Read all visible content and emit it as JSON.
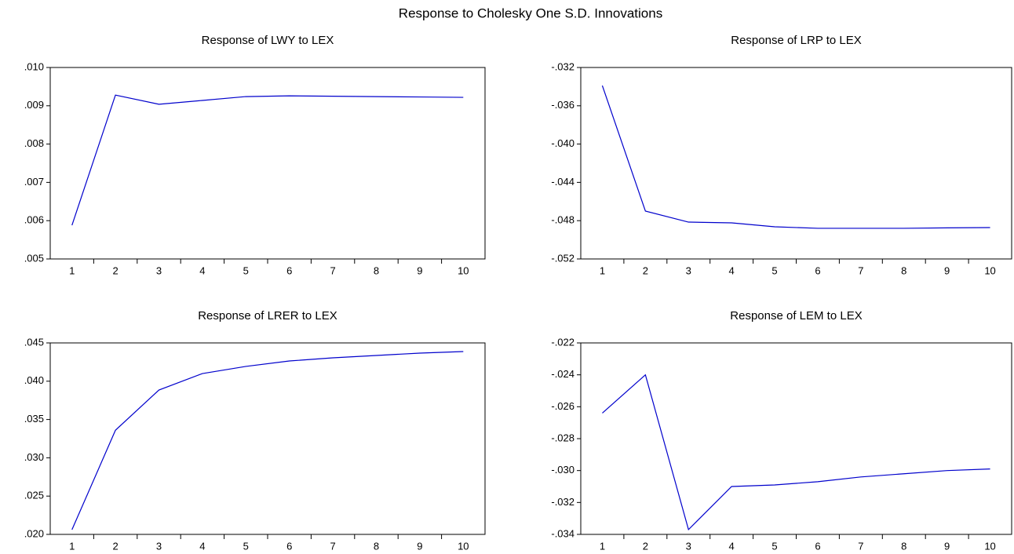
{
  "title": "Response to Cholesky One S.D. Innovations",
  "chart_data": [
    {
      "type": "line",
      "title": "Response of LWY to LEX",
      "categories": [
        "1",
        "2",
        "3",
        "4",
        "5",
        "6",
        "7",
        "8",
        "9",
        "10"
      ],
      "values": [
        0.00588,
        0.00928,
        0.00904,
        0.00914,
        0.00924,
        0.00926,
        0.00925,
        0.00924,
        0.00923,
        0.00922
      ],
      "color": "#0000cc",
      "ylim": [
        0.005,
        0.01
      ],
      "yticks": [
        {
          "value": 0.005,
          "label": ".005"
        },
        {
          "value": 0.006,
          "label": ".006"
        },
        {
          "value": 0.007,
          "label": ".007"
        },
        {
          "value": 0.008,
          "label": ".008"
        },
        {
          "value": 0.009,
          "label": ".009"
        },
        {
          "value": 0.01,
          "label": ".010"
        }
      ],
      "grid": false
    },
    {
      "type": "line",
      "title": "Response of LRP to LEX",
      "categories": [
        "1",
        "2",
        "3",
        "4",
        "5",
        "6",
        "7",
        "8",
        "9",
        "10"
      ],
      "values": [
        -0.03389,
        -0.047,
        -0.04815,
        -0.04823,
        -0.04864,
        -0.0488,
        -0.0488,
        -0.0488,
        -0.04875,
        -0.04872
      ],
      "color": "#0000cc",
      "ylim": [
        -0.052,
        -0.032
      ],
      "yticks": [
        {
          "value": -0.052,
          "label": "-.052"
        },
        {
          "value": -0.048,
          "label": "-.048"
        },
        {
          "value": -0.044,
          "label": "-.044"
        },
        {
          "value": -0.04,
          "label": "-.040"
        },
        {
          "value": -0.036,
          "label": "-.036"
        },
        {
          "value": -0.032,
          "label": "-.032"
        }
      ],
      "grid": false
    },
    {
      "type": "line",
      "title": "Response of LRER to LEX",
      "categories": [
        "1",
        "2",
        "3",
        "4",
        "5",
        "6",
        "7",
        "8",
        "9",
        "10"
      ],
      "values": [
        0.02061,
        0.0336,
        0.03885,
        0.041,
        0.04193,
        0.04264,
        0.04305,
        0.04336,
        0.04367,
        0.04387
      ],
      "color": "#0000cc",
      "ylim": [
        0.02,
        0.045
      ],
      "yticks": [
        {
          "value": 0.02,
          "label": ".020"
        },
        {
          "value": 0.025,
          "label": ".025"
        },
        {
          "value": 0.03,
          "label": ".030"
        },
        {
          "value": 0.035,
          "label": ".035"
        },
        {
          "value": 0.04,
          "label": ".040"
        },
        {
          "value": 0.045,
          "label": ".045"
        }
      ],
      "grid": false
    },
    {
      "type": "line",
      "title": "Response of LEM to LEX",
      "categories": [
        "1",
        "2",
        "3",
        "4",
        "5",
        "6",
        "7",
        "8",
        "9",
        "10"
      ],
      "values": [
        -0.0264,
        -0.024,
        -0.0337,
        -0.031,
        -0.0309,
        -0.0307,
        -0.0304,
        -0.0302,
        -0.03,
        -0.0299
      ],
      "color": "#0000cc",
      "ylim": [
        -0.034,
        -0.022
      ],
      "yticks": [
        {
          "value": -0.034,
          "label": "-.034"
        },
        {
          "value": -0.032,
          "label": "-.032"
        },
        {
          "value": -0.03,
          "label": "-.030"
        },
        {
          "value": -0.028,
          "label": "-.028"
        },
        {
          "value": -0.026,
          "label": "-.026"
        },
        {
          "value": -0.024,
          "label": "-.024"
        },
        {
          "value": -0.022,
          "label": "-.022"
        }
      ],
      "grid": false
    }
  ]
}
